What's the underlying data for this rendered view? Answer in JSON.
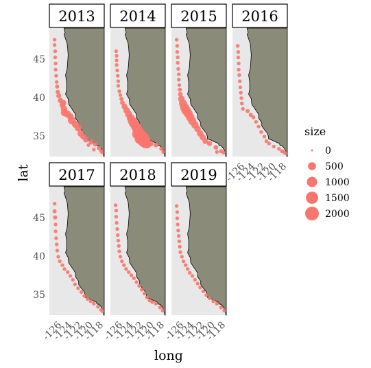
{
  "chart_data": {
    "type": "scatter",
    "xlabel": "long",
    "ylabel": "lat",
    "xlim": [
      -127.5,
      -117
    ],
    "ylim": [
      32.3,
      49
    ],
    "x_ticks": [
      -126,
      -124,
      -122,
      -120,
      -118
    ],
    "x_tick_labels": [
      "-126",
      "-124",
      "-122",
      "-120",
      "-118"
    ],
    "y_ticks": [
      35,
      40,
      45
    ],
    "y_tick_labels": [
      "35",
      "40",
      "45"
    ],
    "colors": {
      "panel_bg": "#e8e8e8",
      "land": "#8b8b7a",
      "point": "#f8766d",
      "strip_bg": "#ffffff"
    },
    "panels": [
      {
        "year": "2013",
        "points": [
          [
            -126.5,
            47.5,
            40
          ],
          [
            -126.5,
            46.8,
            40
          ],
          [
            -126.4,
            46.0,
            40
          ],
          [
            -126.4,
            45.2,
            40
          ],
          [
            -126.3,
            44.4,
            40
          ],
          [
            -126.3,
            43.6,
            40
          ],
          [
            -126.2,
            42.8,
            40
          ],
          [
            -126.1,
            42.0,
            40
          ],
          [
            -126.0,
            41.4,
            60
          ],
          [
            -125.9,
            40.7,
            80
          ],
          [
            -125.7,
            40.2,
            120
          ],
          [
            -125.4,
            39.6,
            150
          ],
          [
            -125.0,
            39.0,
            200
          ],
          [
            -124.7,
            38.5,
            300
          ],
          [
            -124.6,
            38.0,
            400
          ],
          [
            -124.0,
            37.8,
            350
          ],
          [
            -123.5,
            37.5,
            300
          ],
          [
            -123.2,
            37.0,
            500
          ],
          [
            -122.5,
            36.5,
            400
          ],
          [
            -122.0,
            36.0,
            300
          ],
          [
            -121.5,
            35.3,
            300
          ],
          [
            -121.0,
            34.9,
            250
          ],
          [
            -120.5,
            34.5,
            200
          ],
          [
            -119.5,
            34.2,
            150
          ],
          [
            -118.7,
            33.9,
            100
          ],
          [
            -118.0,
            33.4,
            80
          ],
          [
            -117.6,
            33.0,
            40
          ],
          [
            -117.4,
            32.8,
            20
          ],
          [
            -119.0,
            33.2,
            40
          ],
          [
            -120.0,
            33.8,
            40
          ],
          [
            -124.8,
            39.3,
            200
          ]
        ]
      },
      {
        "year": "2014",
        "points": [
          [
            -126.4,
            46.0,
            40
          ],
          [
            -126.3,
            45.4,
            40
          ],
          [
            -126.3,
            44.8,
            40
          ],
          [
            -126.3,
            44.2,
            40
          ],
          [
            -126.2,
            43.5,
            40
          ],
          [
            -126.1,
            42.8,
            40
          ],
          [
            -126.0,
            42.1,
            40
          ],
          [
            -126.0,
            41.5,
            40
          ],
          [
            -125.8,
            40.8,
            40
          ],
          [
            -125.6,
            40.3,
            40
          ],
          [
            -125.4,
            39.8,
            60
          ],
          [
            -125.2,
            39.3,
            100
          ],
          [
            -124.8,
            38.8,
            200
          ],
          [
            -124.4,
            38.3,
            300
          ],
          [
            -124.0,
            37.8,
            400
          ],
          [
            -123.6,
            37.3,
            500
          ],
          [
            -123.3,
            36.9,
            700
          ],
          [
            -123.0,
            36.6,
            800
          ],
          [
            -122.6,
            36.2,
            900
          ],
          [
            -122.3,
            35.8,
            1000
          ],
          [
            -122.0,
            35.4,
            1200
          ],
          [
            -121.7,
            35.0,
            1500
          ],
          [
            -121.4,
            34.7,
            2000
          ],
          [
            -121.1,
            34.4,
            1800
          ],
          [
            -120.8,
            34.1,
            1200
          ],
          [
            -120.5,
            33.9,
            600
          ],
          [
            -119.8,
            34.0,
            200
          ],
          [
            -118.8,
            33.8,
            100
          ],
          [
            -117.8,
            33.3,
            40
          ],
          [
            -117.4,
            32.9,
            40
          ],
          [
            -122.8,
            36.4,
            600
          ],
          [
            -121.9,
            34.6,
            1000
          ],
          [
            -122.5,
            35.2,
            700
          ]
        ]
      },
      {
        "year": "2015",
        "points": [
          [
            -126.5,
            47.5,
            40
          ],
          [
            -126.4,
            46.7,
            40
          ],
          [
            -126.4,
            45.9,
            40
          ],
          [
            -126.3,
            45.2,
            40
          ],
          [
            -126.3,
            44.5,
            40
          ],
          [
            -126.2,
            43.7,
            40
          ],
          [
            -126.1,
            43.0,
            40
          ],
          [
            -126.1,
            42.3,
            40
          ],
          [
            -126.0,
            41.6,
            40
          ],
          [
            -125.9,
            41.0,
            60
          ],
          [
            -125.8,
            40.4,
            100
          ],
          [
            -125.6,
            39.8,
            300
          ],
          [
            -125.3,
            39.2,
            500
          ],
          [
            -125.0,
            38.7,
            700
          ],
          [
            -124.7,
            38.3,
            800
          ],
          [
            -124.3,
            37.9,
            700
          ],
          [
            -123.9,
            37.4,
            600
          ],
          [
            -123.5,
            36.9,
            500
          ],
          [
            -123.0,
            36.4,
            400
          ],
          [
            -122.5,
            35.9,
            300
          ],
          [
            -122.0,
            35.3,
            300
          ],
          [
            -121.5,
            34.8,
            250
          ],
          [
            -121.0,
            34.3,
            200
          ],
          [
            -120.2,
            34.0,
            150
          ],
          [
            -119.0,
            33.5,
            100
          ],
          [
            -118.0,
            33.0,
            60
          ],
          [
            -117.5,
            32.8,
            40
          ],
          [
            -118.8,
            32.9,
            40
          ]
        ]
      },
      {
        "year": "2016",
        "points": [
          [
            -126.5,
            46.7,
            40
          ],
          [
            -126.4,
            45.9,
            40
          ],
          [
            -126.4,
            45.2,
            40
          ],
          [
            -126.3,
            44.4,
            40
          ],
          [
            -126.3,
            43.6,
            40
          ],
          [
            -126.2,
            42.9,
            40
          ],
          [
            -126.1,
            42.1,
            40
          ],
          [
            -126.0,
            41.3,
            40
          ],
          [
            -125.9,
            40.6,
            40
          ],
          [
            -125.8,
            39.9,
            40
          ],
          [
            -125.7,
            39.2,
            40
          ],
          [
            -125.5,
            38.5,
            40
          ],
          [
            -124.6,
            38.2,
            60
          ],
          [
            -124.0,
            37.7,
            60
          ],
          [
            -123.5,
            37.4,
            40
          ],
          [
            -123.0,
            36.8,
            40
          ],
          [
            -122.5,
            36.2,
            40
          ],
          [
            -122.0,
            35.5,
            40
          ],
          [
            -121.4,
            34.9,
            40
          ],
          [
            -121.0,
            34.3,
            40
          ],
          [
            -120.5,
            34.0,
            40
          ],
          [
            -119.6,
            33.6,
            40
          ],
          [
            -118.6,
            33.3,
            40
          ],
          [
            -118.0,
            33.0,
            60
          ],
          [
            -117.5,
            32.8,
            40
          ],
          [
            -117.3,
            32.7,
            20
          ]
        ]
      },
      {
        "year": "2017",
        "points": [
          [
            -126.5,
            46.8,
            40
          ],
          [
            -126.5,
            45.8,
            60
          ],
          [
            -126.4,
            45.0,
            60
          ],
          [
            -126.3,
            44.1,
            40
          ],
          [
            -126.3,
            43.2,
            40
          ],
          [
            -126.2,
            42.3,
            40
          ],
          [
            -126.1,
            41.5,
            40
          ],
          [
            -126.0,
            40.7,
            40
          ],
          [
            -125.8,
            39.9,
            40
          ],
          [
            -125.5,
            39.3,
            40
          ],
          [
            -125.0,
            38.8,
            40
          ],
          [
            -124.6,
            38.3,
            40
          ],
          [
            -124.0,
            37.9,
            40
          ],
          [
            -123.5,
            37.4,
            40
          ],
          [
            -123.0,
            36.9,
            40
          ],
          [
            -122.6,
            36.3,
            40
          ],
          [
            -122.0,
            35.8,
            40
          ],
          [
            -121.4,
            35.3,
            40
          ],
          [
            -120.8,
            34.8,
            40
          ],
          [
            -120.2,
            34.4,
            40
          ],
          [
            -119.6,
            34.1,
            40
          ],
          [
            -119.0,
            33.8,
            40
          ],
          [
            -118.2,
            33.4,
            40
          ],
          [
            -117.6,
            33.0,
            40
          ],
          [
            -117.3,
            32.8,
            40
          ]
        ]
      },
      {
        "year": "2018",
        "points": [
          [
            -126.5,
            46.6,
            40
          ],
          [
            -126.4,
            45.9,
            40
          ],
          [
            -126.4,
            45.1,
            40
          ],
          [
            -126.3,
            44.3,
            40
          ],
          [
            -126.2,
            43.5,
            40
          ],
          [
            -126.1,
            42.7,
            40
          ],
          [
            -126.0,
            42.0,
            40
          ],
          [
            -125.9,
            41.3,
            40
          ],
          [
            -125.8,
            40.6,
            40
          ],
          [
            -125.6,
            39.9,
            40
          ],
          [
            -125.3,
            39.3,
            40
          ],
          [
            -124.9,
            38.8,
            40
          ],
          [
            -124.5,
            38.3,
            40
          ],
          [
            -124.0,
            37.9,
            40
          ],
          [
            -123.5,
            37.5,
            40
          ],
          [
            -123.0,
            37.1,
            40
          ],
          [
            -122.5,
            36.6,
            40
          ],
          [
            -122.0,
            36.1,
            40
          ],
          [
            -121.5,
            35.6,
            40
          ],
          [
            -121.0,
            35.1,
            40
          ],
          [
            -120.5,
            34.6,
            40
          ],
          [
            -120.0,
            34.2,
            40
          ],
          [
            -119.5,
            34.0,
            40
          ],
          [
            -118.8,
            33.8,
            40
          ],
          [
            -118.0,
            33.3,
            40
          ],
          [
            -117.5,
            32.9,
            40
          ]
        ]
      },
      {
        "year": "2019",
        "points": [
          [
            -126.5,
            46.5,
            40
          ],
          [
            -126.4,
            45.7,
            40
          ],
          [
            -126.4,
            44.9,
            40
          ],
          [
            -126.3,
            44.1,
            40
          ],
          [
            -126.2,
            43.3,
            40
          ],
          [
            -126.1,
            42.6,
            40
          ],
          [
            -126.0,
            41.9,
            40
          ],
          [
            -125.9,
            41.2,
            40
          ],
          [
            -125.8,
            40.5,
            40
          ],
          [
            -125.5,
            39.9,
            40
          ],
          [
            -125.2,
            39.3,
            40
          ],
          [
            -124.8,
            38.8,
            40
          ],
          [
            -124.4,
            38.3,
            40
          ],
          [
            -124.0,
            37.8,
            40
          ],
          [
            -123.5,
            37.4,
            40
          ],
          [
            -123.0,
            36.9,
            40
          ],
          [
            -122.5,
            36.4,
            40
          ],
          [
            -122.0,
            35.9,
            40
          ],
          [
            -121.4,
            35.4,
            40
          ],
          [
            -120.8,
            34.9,
            40
          ],
          [
            -120.2,
            34.5,
            40
          ],
          [
            -119.5,
            34.1,
            40
          ],
          [
            -118.8,
            33.8,
            40
          ],
          [
            -118.0,
            33.3,
            40
          ],
          [
            -117.4,
            32.9,
            40
          ]
        ]
      }
    ],
    "coastline": [
      [
        -124.7,
        49
      ],
      [
        -124.5,
        48.4
      ],
      [
        -124.7,
        48.2
      ],
      [
        -124.1,
        47.0
      ],
      [
        -124.0,
        46.3
      ],
      [
        -123.9,
        45.5
      ],
      [
        -124.0,
        44.6
      ],
      [
        -124.1,
        43.7
      ],
      [
        -124.4,
        42.9
      ],
      [
        -124.2,
        42.0
      ],
      [
        -124.2,
        41.0
      ],
      [
        -124.4,
        40.4
      ],
      [
        -123.9,
        39.8
      ],
      [
        -123.8,
        39.1
      ],
      [
        -123.0,
        38.3
      ],
      [
        -122.5,
        37.8
      ],
      [
        -122.5,
        37.3
      ],
      [
        -121.9,
        36.7
      ],
      [
        -121.9,
        36.3
      ],
      [
        -121.4,
        35.8
      ],
      [
        -120.9,
        35.4
      ],
      [
        -120.6,
        34.9
      ],
      [
        -120.6,
        34.6
      ],
      [
        -120.0,
        34.45
      ],
      [
        -119.2,
        34.2
      ],
      [
        -118.5,
        34.0
      ],
      [
        -118.4,
        33.75
      ],
      [
        -118.0,
        33.7
      ],
      [
        -117.6,
        33.4
      ],
      [
        -117.3,
        33.0
      ],
      [
        -117.1,
        32.5
      ],
      [
        -117.1,
        32.3
      ]
    ],
    "legend": {
      "title": "size",
      "entries": [
        {
          "label": "0",
          "value": 0
        },
        {
          "label": "500",
          "value": 500
        },
        {
          "label": "1000",
          "value": 1000
        },
        {
          "label": "1500",
          "value": 1500
        },
        {
          "label": "2000",
          "value": 2000
        }
      ]
    }
  }
}
